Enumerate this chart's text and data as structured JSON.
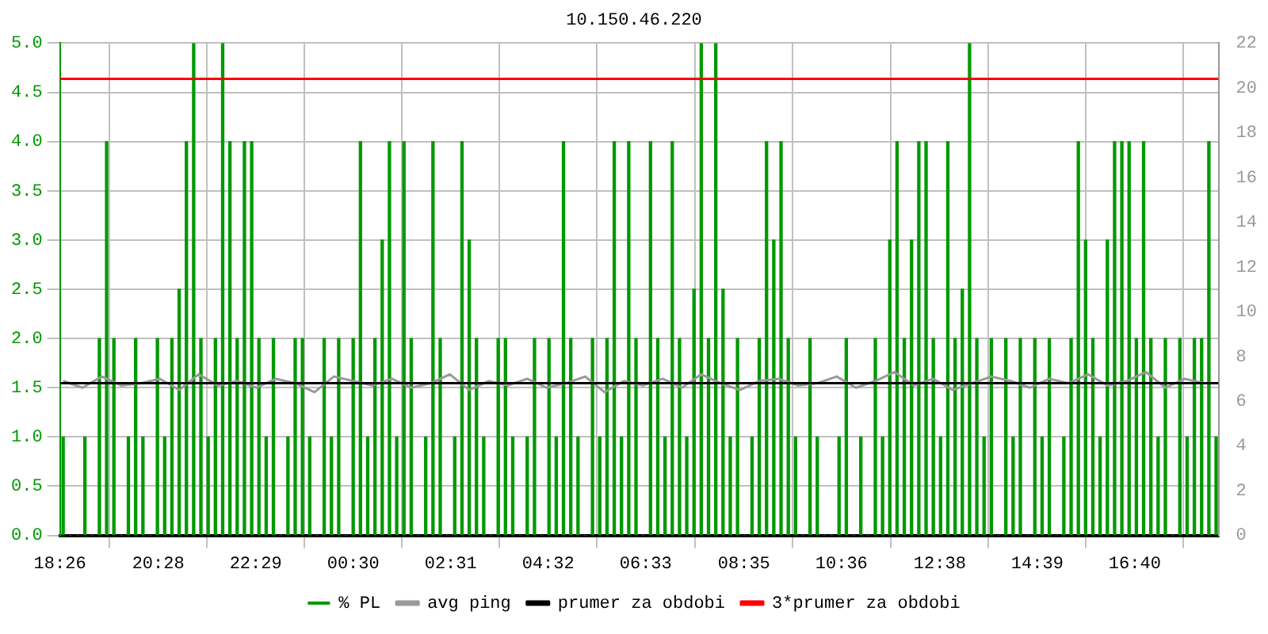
{
  "chart_data": {
    "type": "bar",
    "title": "10.150.46.220",
    "grid": true,
    "legend": "bottom",
    "xlim": [
      "--01-01T18:26",
      "--01-02T18:24"
    ],
    "xticks": [
      {
        "value": "--01-01T18:26",
        "label": "18:26"
      },
      {
        "value": "--01-01T20:28",
        "label": "20:28"
      },
      {
        "value": "--01-01T22:29",
        "label": "22:29"
      },
      {
        "value": "--01-02T00:30",
        "label": "00:30"
      },
      {
        "value": "--01-02T02:31",
        "label": "02:31"
      },
      {
        "value": "--01-02T04:32",
        "label": "04:32"
      },
      {
        "value": "--01-02T06:33",
        "label": "06:33"
      },
      {
        "value": "--01-02T08:35",
        "label": "08:35"
      },
      {
        "value": "--01-02T10:36",
        "label": "10:36"
      },
      {
        "value": "--01-02T12:38",
        "label": "12:38"
      },
      {
        "value": "--01-02T14:39",
        "label": "14:39"
      },
      {
        "value": "--01-02T16:40",
        "label": "16:40"
      }
    ],
    "ylim": [
      0,
      5
    ],
    "yticks": [
      {
        "value": 0,
        "label": "0.0"
      },
      {
        "value": 0.5,
        "label": "0.5"
      },
      {
        "value": 1,
        "label": "1.0"
      },
      {
        "value": 1.5,
        "label": "1.5"
      },
      {
        "value": 2,
        "label": "2.0"
      },
      {
        "value": 2.5,
        "label": "2.5"
      },
      {
        "value": 3,
        "label": "3.0"
      },
      {
        "value": 3.5,
        "label": "3.5"
      },
      {
        "value": 4,
        "label": "4.0"
      },
      {
        "value": 4.5,
        "label": "4.5"
      },
      {
        "value": 5,
        "label": "5.0"
      }
    ],
    "y2lim": [
      0,
      22
    ],
    "y2ticks": [
      0,
      2,
      4,
      6,
      8,
      10,
      12,
      14,
      16,
      18,
      20,
      22
    ],
    "series": [
      {
        "name": "% PL",
        "color": "#009900",
        "x": [
          "--01-01T18:30",
          "--01-01T18:39",
          "--01-01T18:48",
          "--01-01T18:57",
          "--01-01T19:06",
          "--01-01T19:15",
          "--01-01T19:24",
          "--01-01T19:33",
          "--01-01T19:42",
          "--01-01T19:51",
          "--01-01T20:00",
          "--01-01T20:09",
          "--01-01T20:18",
          "--01-01T20:27",
          "--01-01T20:36",
          "--01-01T20:45",
          "--01-01T20:54",
          "--01-01T21:03",
          "--01-01T21:12",
          "--01-01T21:21",
          "--01-01T21:30",
          "--01-01T21:39",
          "--01-01T21:48",
          "--01-01T21:57",
          "--01-01T22:06",
          "--01-01T22:15",
          "--01-01T22:24",
          "--01-01T22:33",
          "--01-01T22:42",
          "--01-01T22:51",
          "--01-01T23:00",
          "--01-01T23:09",
          "--01-01T23:18",
          "--01-01T23:27",
          "--01-01T23:36",
          "--01-01T23:45",
          "--01-01T23:54",
          "--01-02T00:03",
          "--01-02T00:12",
          "--01-02T00:21",
          "--01-02T00:30",
          "--01-02T00:39",
          "--01-02T00:48",
          "--01-02T00:57",
          "--01-02T01:06",
          "--01-02T01:15",
          "--01-02T01:24",
          "--01-02T01:33",
          "--01-02T01:42",
          "--01-02T01:51",
          "--01-02T02:00",
          "--01-02T02:09",
          "--01-02T02:18",
          "--01-02T02:27",
          "--01-02T02:36",
          "--01-02T02:45",
          "--01-02T02:54",
          "--01-02T03:03",
          "--01-02T03:12",
          "--01-02T03:21",
          "--01-02T03:30",
          "--01-02T03:39",
          "--01-02T03:48",
          "--01-02T03:57",
          "--01-02T04:06",
          "--01-02T04:15",
          "--01-02T04:24",
          "--01-02T04:33",
          "--01-02T04:42",
          "--01-02T04:51",
          "--01-02T05:00",
          "--01-02T05:09",
          "--01-02T05:18",
          "--01-02T05:27",
          "--01-02T05:36",
          "--01-02T05:45",
          "--01-02T05:54",
          "--01-02T06:03",
          "--01-02T06:12",
          "--01-02T06:21",
          "--01-02T06:30",
          "--01-02T06:39",
          "--01-02T06:48",
          "--01-02T06:57",
          "--01-02T07:06",
          "--01-02T07:15",
          "--01-02T07:24",
          "--01-02T07:33",
          "--01-02T07:42",
          "--01-02T07:51",
          "--01-02T08:00",
          "--01-02T08:09",
          "--01-02T08:18",
          "--01-02T08:27",
          "--01-02T08:36",
          "--01-02T08:45",
          "--01-02T08:54",
          "--01-02T09:03",
          "--01-02T09:12",
          "--01-02T09:21",
          "--01-02T09:30",
          "--01-02T09:39",
          "--01-02T09:48",
          "--01-02T09:57",
          "--01-02T10:06",
          "--01-02T10:15",
          "--01-02T10:24",
          "--01-02T10:33",
          "--01-02T10:42",
          "--01-02T10:51",
          "--01-02T11:00",
          "--01-02T11:09",
          "--01-02T11:18",
          "--01-02T11:27",
          "--01-02T11:36",
          "--01-02T11:45",
          "--01-02T11:54",
          "--01-02T12:03",
          "--01-02T12:12",
          "--01-02T12:21",
          "--01-02T12:30",
          "--01-02T12:39",
          "--01-02T12:48",
          "--01-02T12:57",
          "--01-02T13:06",
          "--01-02T13:15",
          "--01-02T13:24",
          "--01-02T13:33",
          "--01-02T13:42",
          "--01-02T13:51",
          "--01-02T14:00",
          "--01-02T14:09",
          "--01-02T14:18",
          "--01-02T14:27",
          "--01-02T14:36",
          "--01-02T14:45",
          "--01-02T14:54",
          "--01-02T15:03",
          "--01-02T15:12",
          "--01-02T15:21",
          "--01-02T15:30",
          "--01-02T15:39",
          "--01-02T15:48",
          "--01-02T15:57",
          "--01-02T16:06",
          "--01-02T16:15",
          "--01-02T16:24",
          "--01-02T16:33",
          "--01-02T16:42",
          "--01-02T16:51",
          "--01-02T17:00",
          "--01-02T17:09",
          "--01-02T17:18",
          "--01-02T17:27",
          "--01-02T17:36",
          "--01-02T17:45",
          "--01-02T17:54",
          "--01-02T18:03",
          "--01-02T18:12",
          "--01-02T18:21"
        ],
        "values": [
          1,
          0,
          0,
          1,
          0,
          2,
          4,
          2,
          0,
          1,
          2,
          1,
          0,
          2,
          1,
          2,
          2.5,
          4,
          5,
          2,
          1,
          2,
          5,
          4,
          2,
          4,
          4,
          2,
          1,
          2,
          0,
          1,
          2,
          2,
          1,
          0,
          2,
          1,
          2,
          0,
          2,
          4,
          1,
          2,
          3,
          4,
          1,
          4,
          2,
          0,
          1,
          4,
          2,
          0,
          1,
          4,
          3,
          2,
          1,
          0,
          2,
          2,
          1,
          0,
          1,
          2,
          0,
          2,
          1,
          4,
          2,
          1,
          0,
          2,
          1,
          2,
          4,
          1,
          4,
          2,
          0,
          4,
          2,
          1,
          4,
          2,
          1,
          2.5,
          5,
          2,
          5,
          2.5,
          1,
          2,
          0,
          1,
          2,
          4,
          3,
          4,
          2,
          1,
          0,
          2,
          1,
          0,
          0,
          1,
          2,
          0,
          1,
          0,
          2,
          1,
          3,
          4,
          2,
          3,
          4,
          4,
          2,
          1,
          4,
          2,
          2.5,
          5,
          2,
          1,
          2,
          0,
          2,
          1,
          2,
          0,
          2,
          1,
          2,
          0,
          1,
          2,
          4,
          3,
          2,
          1,
          3,
          4,
          4,
          4,
          2,
          4,
          2,
          1,
          2,
          0,
          2,
          1,
          2,
          2,
          4,
          1
        ]
      },
      {
        "name": "avg ping",
        "type": "line",
        "axis": "y2",
        "color": "#999999",
        "x": [
          "--01-01T18:30",
          "--01-01T18:54",
          "--01-01T19:18",
          "--01-01T19:42",
          "--01-01T20:06",
          "--01-01T20:30",
          "--01-01T20:54",
          "--01-01T21:18",
          "--01-01T21:42",
          "--01-01T22:06",
          "--01-01T22:30",
          "--01-01T22:54",
          "--01-01T23:18",
          "--01-01T23:42",
          "--01-02T00:06",
          "--01-02T00:30",
          "--01-02T00:54",
          "--01-02T01:18",
          "--01-02T01:42",
          "--01-02T02:06",
          "--01-02T02:30",
          "--01-02T02:54",
          "--01-02T03:18",
          "--01-02T03:42",
          "--01-02T04:06",
          "--01-02T04:30",
          "--01-02T04:54",
          "--01-02T05:18",
          "--01-02T05:42",
          "--01-02T06:06",
          "--01-02T06:30",
          "--01-02T06:54",
          "--01-02T07:18",
          "--01-02T07:42",
          "--01-02T08:06",
          "--01-02T08:30",
          "--01-02T08:54",
          "--01-02T09:18",
          "--01-02T09:42",
          "--01-02T10:06",
          "--01-02T10:30",
          "--01-02T10:54",
          "--01-02T11:18",
          "--01-02T11:42",
          "--01-02T12:06",
          "--01-02T12:30",
          "--01-02T12:54",
          "--01-02T13:18",
          "--01-02T13:42",
          "--01-02T14:06",
          "--01-02T14:30",
          "--01-02T14:54",
          "--01-02T15:18",
          "--01-02T15:42",
          "--01-02T16:06",
          "--01-02T16:30",
          "--01-02T16:54",
          "--01-02T17:18",
          "--01-02T17:42",
          "--01-02T18:06"
        ],
        "values": [
          6.9,
          6.6,
          7.1,
          6.7,
          6.8,
          7.0,
          6.5,
          7.2,
          6.7,
          6.9,
          6.6,
          7.0,
          6.8,
          6.4,
          7.1,
          6.9,
          6.7,
          7.0,
          6.6,
          6.8,
          7.2,
          6.5,
          6.9,
          6.7,
          7.0,
          6.6,
          6.8,
          7.1,
          6.4,
          6.9,
          6.7,
          7.0,
          6.6,
          7.2,
          6.8,
          6.5,
          6.9,
          7.0,
          6.7,
          6.8,
          7.1,
          6.6,
          6.9,
          7.3,
          6.7,
          7.0,
          6.5,
          6.8,
          7.1,
          6.9,
          6.6,
          7.0,
          6.8,
          7.2,
          6.7,
          6.9,
          7.3,
          6.6,
          7.0,
          6.8
        ]
      },
      {
        "name": "prumer za obdobi",
        "type": "line",
        "axis": "y2",
        "color": "#000000",
        "x": [
          "--01-01T18:26",
          "--01-02T18:24"
        ],
        "values": [
          6.8,
          6.8
        ]
      },
      {
        "name": "3*prumer za obdobi",
        "type": "line",
        "axis": "y2",
        "color": "#ff0000",
        "x": [
          "--01-01T18:26",
          "--01-02T18:24"
        ],
        "values": [
          20.4,
          20.4
        ]
      }
    ]
  }
}
